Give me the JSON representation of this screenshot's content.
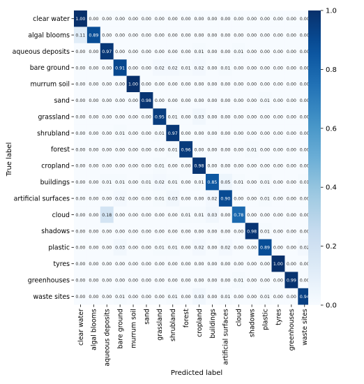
{
  "chart_data": {
    "type": "heatmap",
    "title": "",
    "xlabel": "Predicted label",
    "ylabel": "True label",
    "categories": [
      "clear water",
      "algal blooms",
      "aqueous deposits",
      "bare ground",
      "murrum soil",
      "sand",
      "grassland",
      "shrubland",
      "forest",
      "cropland",
      "buildings",
      "artificial surfaces",
      "cloud",
      "shadows",
      "plastic",
      "tyres",
      "greenhouses",
      "waste sites"
    ],
    "colormap": "Blues",
    "color_low": "#f7fbff",
    "color_high": "#08306b",
    "vmin": 0.0,
    "vmax": 1.0,
    "colorbar_ticks": [
      "0.0",
      "0.2",
      "0.4",
      "0.6",
      "0.8",
      "1.0"
    ],
    "colorbar_values": [
      0.0,
      0.2,
      0.4,
      0.6,
      0.8,
      1.0
    ],
    "values": [
      [
        1.0,
        0.0,
        0.0,
        0.0,
        0.0,
        0.0,
        0.0,
        0.0,
        0.0,
        0.0,
        0.0,
        0.0,
        0.0,
        0.0,
        0.0,
        0.0,
        0.0,
        0.0
      ],
      [
        0.11,
        0.89,
        0.0,
        0.0,
        0.0,
        0.0,
        0.0,
        0.0,
        0.0,
        0.0,
        0.0,
        0.0,
        0.0,
        0.0,
        0.0,
        0.0,
        0.0,
        0.0
      ],
      [
        0.0,
        0.0,
        0.97,
        0.0,
        0.0,
        0.0,
        0.0,
        0.0,
        0.0,
        0.01,
        0.0,
        0.0,
        0.01,
        0.0,
        0.0,
        0.0,
        0.0,
        0.0
      ],
      [
        0.0,
        0.0,
        0.0,
        0.91,
        0.0,
        0.0,
        0.02,
        0.02,
        0.01,
        0.02,
        0.0,
        0.01,
        0.0,
        0.0,
        0.0,
        0.0,
        0.0,
        0.0
      ],
      [
        0.0,
        0.0,
        0.0,
        0.0,
        1.0,
        0.0,
        0.0,
        0.0,
        0.0,
        0.0,
        0.0,
        0.0,
        0.0,
        0.0,
        0.0,
        0.0,
        0.0,
        0.0
      ],
      [
        0.0,
        0.0,
        0.0,
        0.0,
        0.0,
        0.98,
        0.0,
        0.0,
        0.0,
        0.0,
        0.0,
        0.0,
        0.0,
        0.0,
        0.01,
        0.0,
        0.0,
        0.0
      ],
      [
        0.0,
        0.0,
        0.0,
        0.0,
        0.0,
        0.0,
        0.95,
        0.01,
        0.0,
        0.03,
        0.0,
        0.0,
        0.0,
        0.0,
        0.0,
        0.0,
        0.0,
        0.0
      ],
      [
        0.0,
        0.0,
        0.0,
        0.01,
        0.0,
        0.0,
        0.01,
        0.97,
        0.0,
        0.0,
        0.0,
        0.0,
        0.0,
        0.0,
        0.0,
        0.0,
        0.0,
        0.0
      ],
      [
        0.0,
        0.0,
        0.0,
        0.0,
        0.0,
        0.0,
        0.0,
        0.01,
        0.96,
        0.0,
        0.0,
        0.0,
        0.0,
        0.01,
        0.0,
        0.0,
        0.0,
        0.0
      ],
      [
        0.0,
        0.0,
        0.0,
        0.0,
        0.0,
        0.0,
        0.01,
        0.0,
        0.0,
        0.98,
        0.0,
        0.0,
        0.0,
        0.0,
        0.0,
        0.0,
        0.0,
        0.0
      ],
      [
        0.0,
        0.0,
        0.01,
        0.01,
        0.0,
        0.01,
        0.02,
        0.01,
        0.0,
        0.01,
        0.85,
        0.05,
        0.01,
        0.0,
        0.01,
        0.0,
        0.0,
        0.01
      ],
      [
        0.0,
        0.0,
        0.0,
        0.02,
        0.0,
        0.0,
        0.01,
        0.03,
        0.0,
        0.0,
        0.02,
        0.9,
        0.0,
        0.0,
        0.01,
        0.0,
        0.0,
        0.0
      ],
      [
        0.0,
        0.0,
        0.18,
        0.0,
        0.0,
        0.0,
        0.0,
        0.0,
        0.01,
        0.01,
        0.03,
        0.0,
        0.78,
        0.0,
        0.0,
        0.0,
        0.0,
        0.0
      ],
      [
        0.0,
        0.0,
        0.0,
        0.0,
        0.0,
        0.0,
        0.0,
        0.0,
        0.0,
        0.0,
        0.0,
        0.0,
        0.0,
        0.98,
        0.01,
        0.0,
        0.0,
        0.0
      ],
      [
        0.0,
        0.0,
        0.0,
        0.03,
        0.0,
        0.0,
        0.01,
        0.01,
        0.0,
        0.02,
        0.0,
        0.02,
        0.0,
        0.0,
        0.89,
        0.0,
        0.0,
        0.02
      ],
      [
        0.0,
        0.0,
        0.0,
        0.0,
        0.0,
        0.0,
        0.0,
        0.0,
        0.0,
        0.0,
        0.0,
        0.0,
        0.0,
        0.0,
        0.0,
        1.0,
        0.0,
        0.0
      ],
      [
        0.0,
        0.0,
        0.0,
        0.0,
        0.0,
        0.0,
        0.0,
        0.0,
        0.0,
        0.0,
        0.0,
        0.0,
        0.01,
        0.0,
        0.0,
        0.0,
        0.99,
        0.0
      ],
      [
        0.0,
        0.0,
        0.0,
        0.01,
        0.0,
        0.0,
        0.0,
        0.01,
        0.0,
        0.03,
        0.0,
        0.01,
        0.0,
        0.0,
        0.01,
        0.0,
        0.0,
        0.94
      ]
    ]
  }
}
